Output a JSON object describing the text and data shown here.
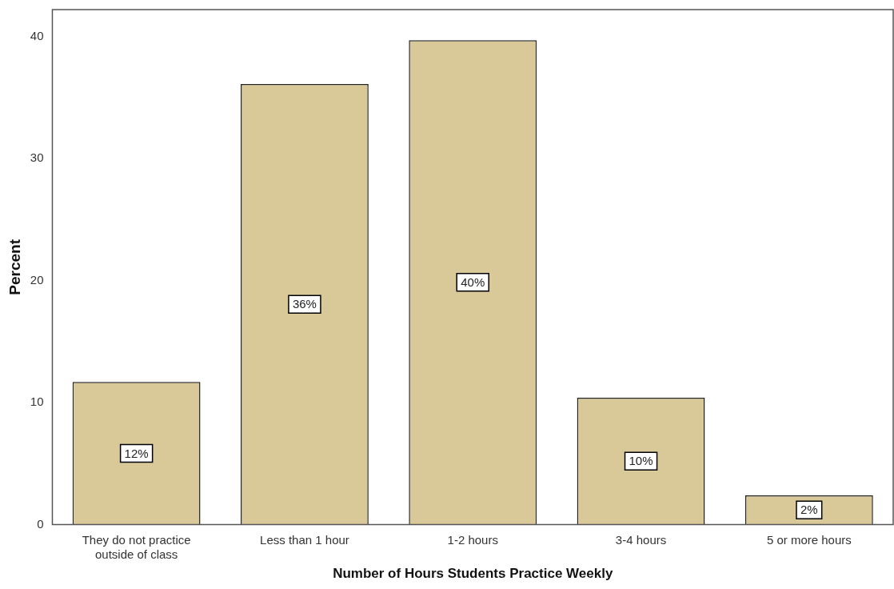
{
  "chart_data": {
    "type": "bar",
    "xlabel": "Number of Hours Students Practice Weekly",
    "ylabel": "Percent",
    "categories": [
      "They do not practice outside of class",
      "Less than 1 hour",
      "1-2 hours",
      "3-4 hours",
      "5 or more hours"
    ],
    "values": [
      11.7,
      36.1,
      39.7,
      10.4,
      2.4
    ],
    "value_labels": [
      "12%",
      "36%",
      "40%",
      "10%",
      "2%"
    ],
    "color": "#d9c898",
    "ylim": [
      0,
      42.2
    ],
    "yticks": [
      0,
      10,
      20,
      30,
      40
    ],
    "grid": false,
    "legend": false
  }
}
